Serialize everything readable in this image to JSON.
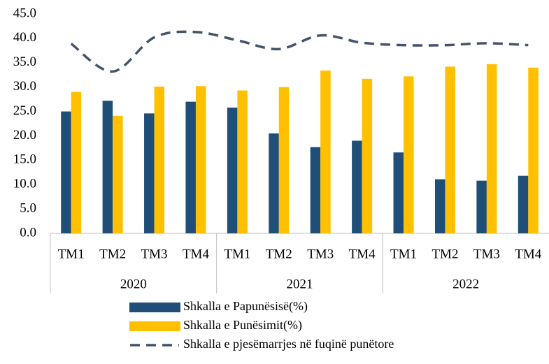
{
  "chart_data": {
    "type": "bar",
    "category_groups": [
      {
        "name": "2020",
        "categories": [
          "TM1",
          "TM2",
          "TM3",
          "TM4"
        ]
      },
      {
        "name": "2021",
        "categories": [
          "TM1",
          "TM2",
          "TM3",
          "TM4"
        ]
      },
      {
        "name": "2022",
        "categories": [
          "TM1",
          "TM2",
          "TM3",
          "TM4"
        ]
      }
    ],
    "series": [
      {
        "name": "Shkalla e Papunësisë(%)",
        "type": "bar",
        "color": "#1f4e79",
        "values": [
          25.0,
          27.2,
          24.6,
          27.0,
          25.8,
          20.5,
          17.7,
          19.0,
          16.6,
          11.1,
          10.8,
          11.8
        ]
      },
      {
        "name": "Shkalla e Punësimit(%)",
        "type": "bar",
        "color": "#ffc000",
        "values": [
          29.0,
          24.1,
          30.1,
          30.2,
          29.3,
          30.0,
          33.4,
          31.7,
          32.2,
          34.2,
          34.7,
          34.0
        ]
      },
      {
        "name": "Shkalla e pjesëmarrjes në fuqinë punëtore",
        "type": "line",
        "line_style": "dashed",
        "color": "#44546a",
        "values": [
          38.9,
          33.2,
          40.2,
          41.3,
          39.6,
          37.8,
          40.6,
          39.1,
          38.6,
          38.6,
          39.0,
          38.6
        ]
      }
    ],
    "ylim": [
      0,
      45
    ],
    "yticks": [
      {
        "value": 0,
        "label": "0.0"
      },
      {
        "value": 5,
        "label": "5.0"
      },
      {
        "value": 10,
        "label": "10.0"
      },
      {
        "value": 15,
        "label": "15.0"
      },
      {
        "value": 20,
        "label": "20.0"
      },
      {
        "value": 25,
        "label": "25.0"
      },
      {
        "value": 30,
        "label": "30.0"
      },
      {
        "value": 35,
        "label": "35.0"
      },
      {
        "value": 40,
        "label": "40.0"
      },
      {
        "value": 45,
        "label": "45.0"
      }
    ],
    "grid": false,
    "legend": "bottom"
  }
}
